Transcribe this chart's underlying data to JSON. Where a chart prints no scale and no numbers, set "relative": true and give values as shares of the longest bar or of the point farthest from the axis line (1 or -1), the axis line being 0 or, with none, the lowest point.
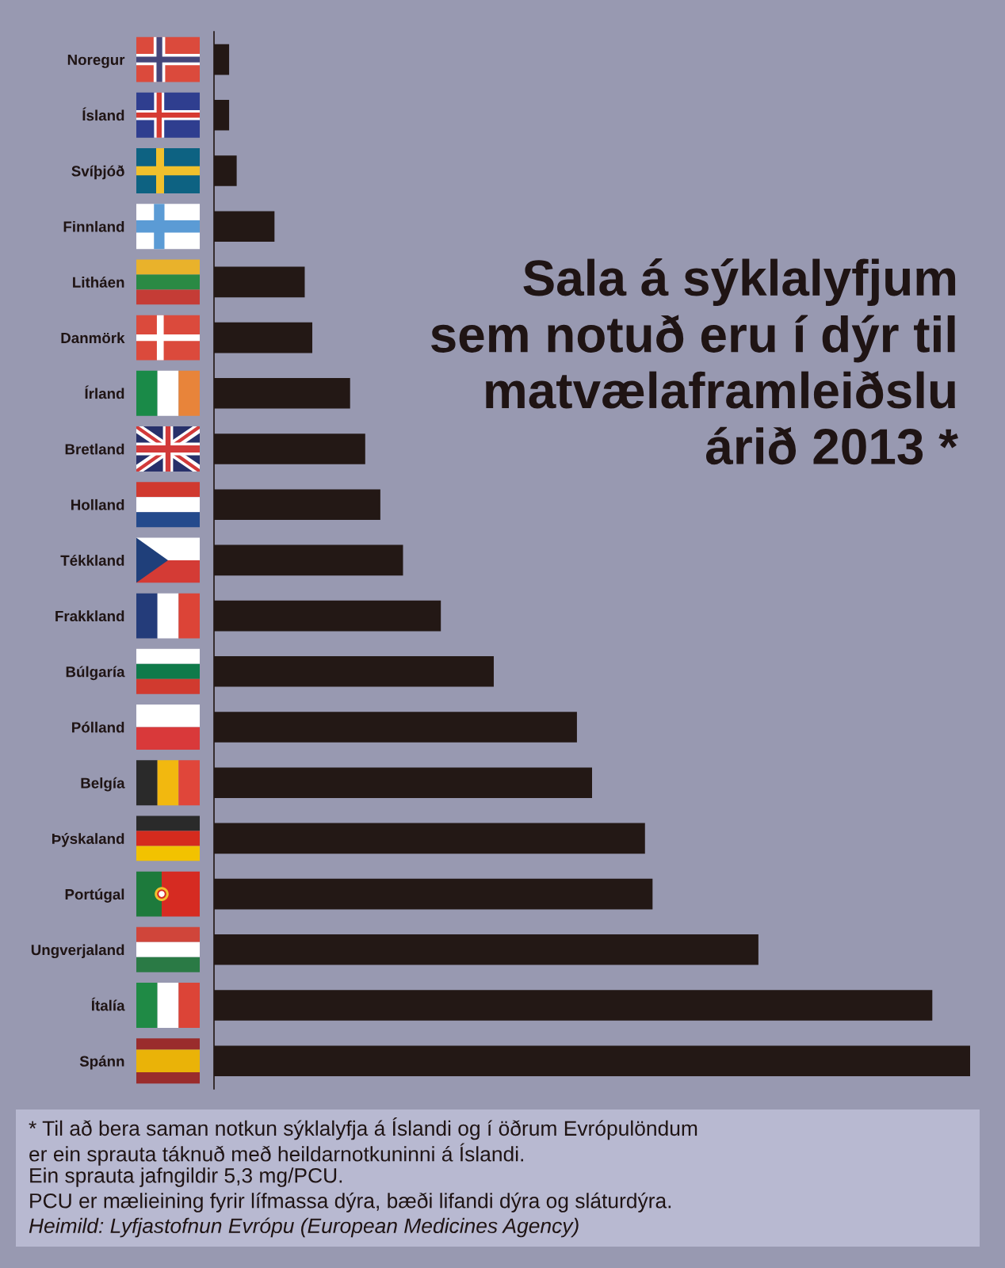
{
  "chart_data": {
    "type": "bar",
    "orientation": "horizontal",
    "relative": true,
    "title": "Sala á sýklalyfjum\nsem notuð eru í dýr til\nmatvælaframleiðslu\nárið 2013 *",
    "categories": [
      "Noregur",
      "Ísland",
      "Svíþjóð",
      "Finnland",
      "Litháen",
      "Danmörk",
      "Írland",
      "Bretland",
      "Holland",
      "Tékkland",
      "Frakkland",
      "Búlgaría",
      "Pólland",
      "Belgía",
      "Þýskaland",
      "Portúgal",
      "Ungverjaland",
      "Ítalía",
      "Spánn"
    ],
    "values": [
      0.02,
      0.02,
      0.03,
      0.08,
      0.12,
      0.13,
      0.18,
      0.2,
      0.22,
      0.25,
      0.3,
      0.37,
      0.48,
      0.5,
      0.57,
      0.58,
      0.72,
      0.95,
      1
    ],
    "color": "#231815",
    "annotations": [
      "* Til að bera saman notkun sýklalyfja á Íslandi og í öðrum Evrópulöndum\ner ein sprauta táknuð með heildarnotkuninni á Íslandi.",
      "Ein sprauta jafngildir 5,3 mg/PCU.",
      "PCU er mælieining fyrir lífmassa dýra, bæði lifandi dýra og sláturdýra.",
      "Heimild: Lyfjastofnun Evrópu (European Medicines Agency)"
    ]
  }
}
